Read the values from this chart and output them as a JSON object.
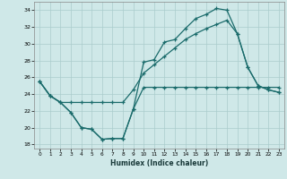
{
  "xlabel": "Humidex (Indice chaleur)",
  "xlim": [
    -0.5,
    23.5
  ],
  "ylim": [
    17.5,
    35.0
  ],
  "yticks": [
    18,
    20,
    22,
    24,
    26,
    28,
    30,
    32,
    34
  ],
  "xticks": [
    0,
    1,
    2,
    3,
    4,
    5,
    6,
    7,
    8,
    9,
    10,
    11,
    12,
    13,
    14,
    15,
    16,
    17,
    18,
    19,
    20,
    21,
    22,
    23
  ],
  "bg_color": "#cfe8e8",
  "grid_color": "#aacccc",
  "line_color": "#1a6b6b",
  "line_min": {
    "x": [
      0,
      1,
      2,
      3,
      4,
      5,
      6,
      7,
      8,
      9,
      10,
      11,
      12,
      13,
      14,
      15,
      16,
      17,
      18,
      19,
      20,
      21,
      22,
      23
    ],
    "y": [
      25.5,
      23.8,
      23.0,
      21.8,
      20.0,
      19.8,
      18.6,
      18.7,
      18.7,
      22.2,
      24.8,
      24.8,
      24.8,
      24.8,
      24.8,
      24.8,
      24.8,
      24.8,
      24.8,
      24.8,
      24.8,
      24.8,
      24.8,
      24.8
    ]
  },
  "line_mid": {
    "x": [
      0,
      1,
      2,
      3,
      4,
      5,
      6,
      7,
      8,
      9,
      10,
      11,
      12,
      13,
      14,
      15,
      16,
      17,
      18,
      19,
      20,
      21,
      22,
      23
    ],
    "y": [
      25.5,
      23.8,
      23.0,
      23.0,
      23.0,
      23.0,
      23.0,
      23.0,
      23.0,
      24.5,
      26.5,
      27.5,
      28.5,
      29.5,
      30.5,
      31.2,
      31.8,
      32.3,
      32.8,
      31.2,
      27.2,
      25.0,
      24.5,
      24.2
    ]
  },
  "line_max": {
    "x": [
      0,
      1,
      2,
      3,
      4,
      5,
      6,
      7,
      8,
      9,
      10,
      11,
      12,
      13,
      14,
      15,
      16,
      17,
      18,
      19,
      20,
      21,
      22,
      23
    ],
    "y": [
      25.5,
      23.8,
      23.0,
      21.8,
      20.0,
      19.8,
      18.6,
      18.7,
      18.7,
      22.2,
      27.8,
      28.1,
      30.2,
      30.5,
      31.8,
      33.0,
      33.5,
      34.2,
      34.0,
      31.2,
      27.2,
      25.0,
      24.5,
      24.2
    ]
  }
}
